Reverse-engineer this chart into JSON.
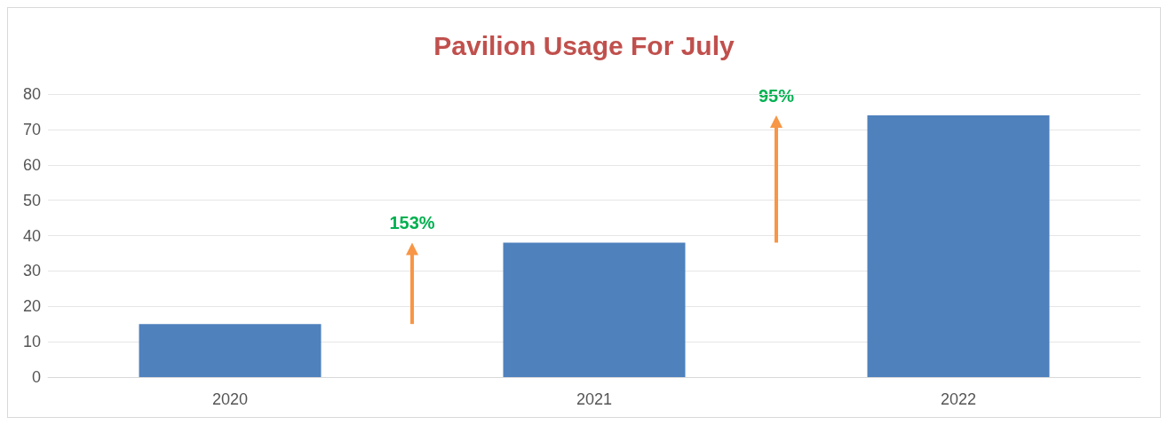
{
  "chart_data": {
    "type": "bar",
    "title": "Pavilion Usage For July",
    "categories": [
      "2020",
      "2021",
      "2022"
    ],
    "values": [
      15,
      38,
      74
    ],
    "color": "#4f81bd",
    "ylim": [
      0,
      80
    ],
    "yticks": [
      0,
      10,
      20,
      30,
      40,
      50,
      60,
      70,
      80
    ],
    "grid": "y",
    "annotations": [
      "153%",
      "95%"
    ]
  }
}
